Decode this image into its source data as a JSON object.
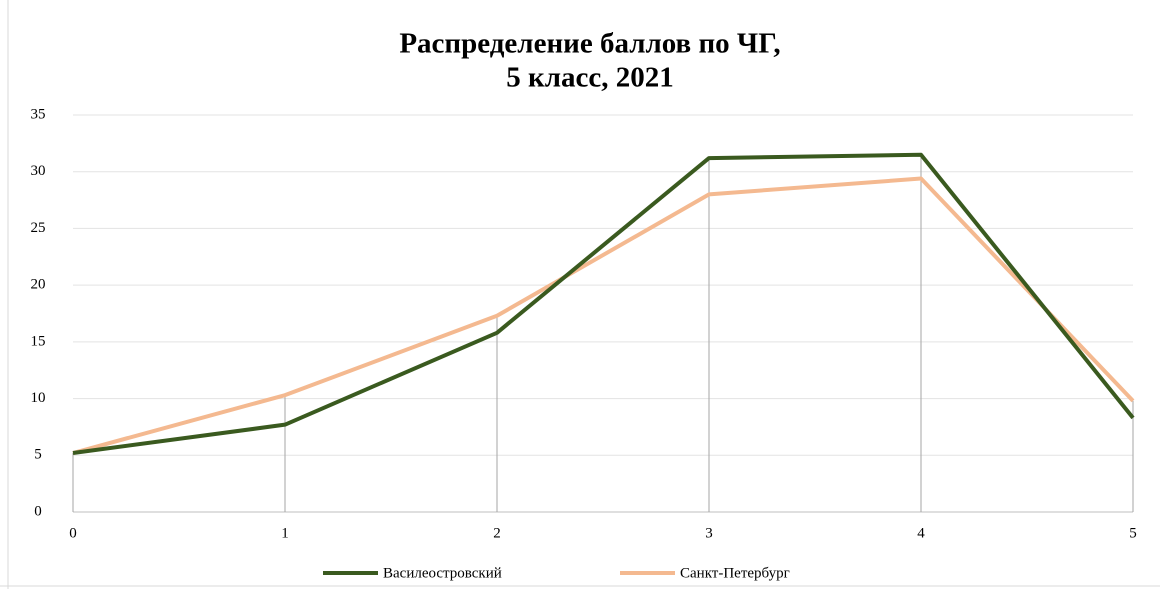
{
  "chart_data": {
    "type": "line",
    "title": [
      "Распределение баллов  по ЧГ,",
      "5 класс, 2021"
    ],
    "x": [
      0,
      1,
      2,
      3,
      4,
      5
    ],
    "series": [
      {
        "name": "Василеостровский",
        "color": "#3a5a1f",
        "values": [
          5.2,
          7.7,
          15.8,
          31.2,
          31.5,
          8.3
        ]
      },
      {
        "name": "Санкт-Петербург",
        "color": "#f4b990",
        "values": [
          5.2,
          10.3,
          17.3,
          28,
          29.4,
          9.8
        ]
      }
    ],
    "xlim": [
      0,
      5
    ],
    "xticks": [
      0,
      1,
      2,
      3,
      4,
      5
    ],
    "ylim": [
      0,
      35
    ],
    "yticks": [
      0,
      5,
      10,
      15,
      20,
      25,
      30,
      35
    ],
    "grid": true,
    "drop_lines": true,
    "legend": "bottom"
  }
}
